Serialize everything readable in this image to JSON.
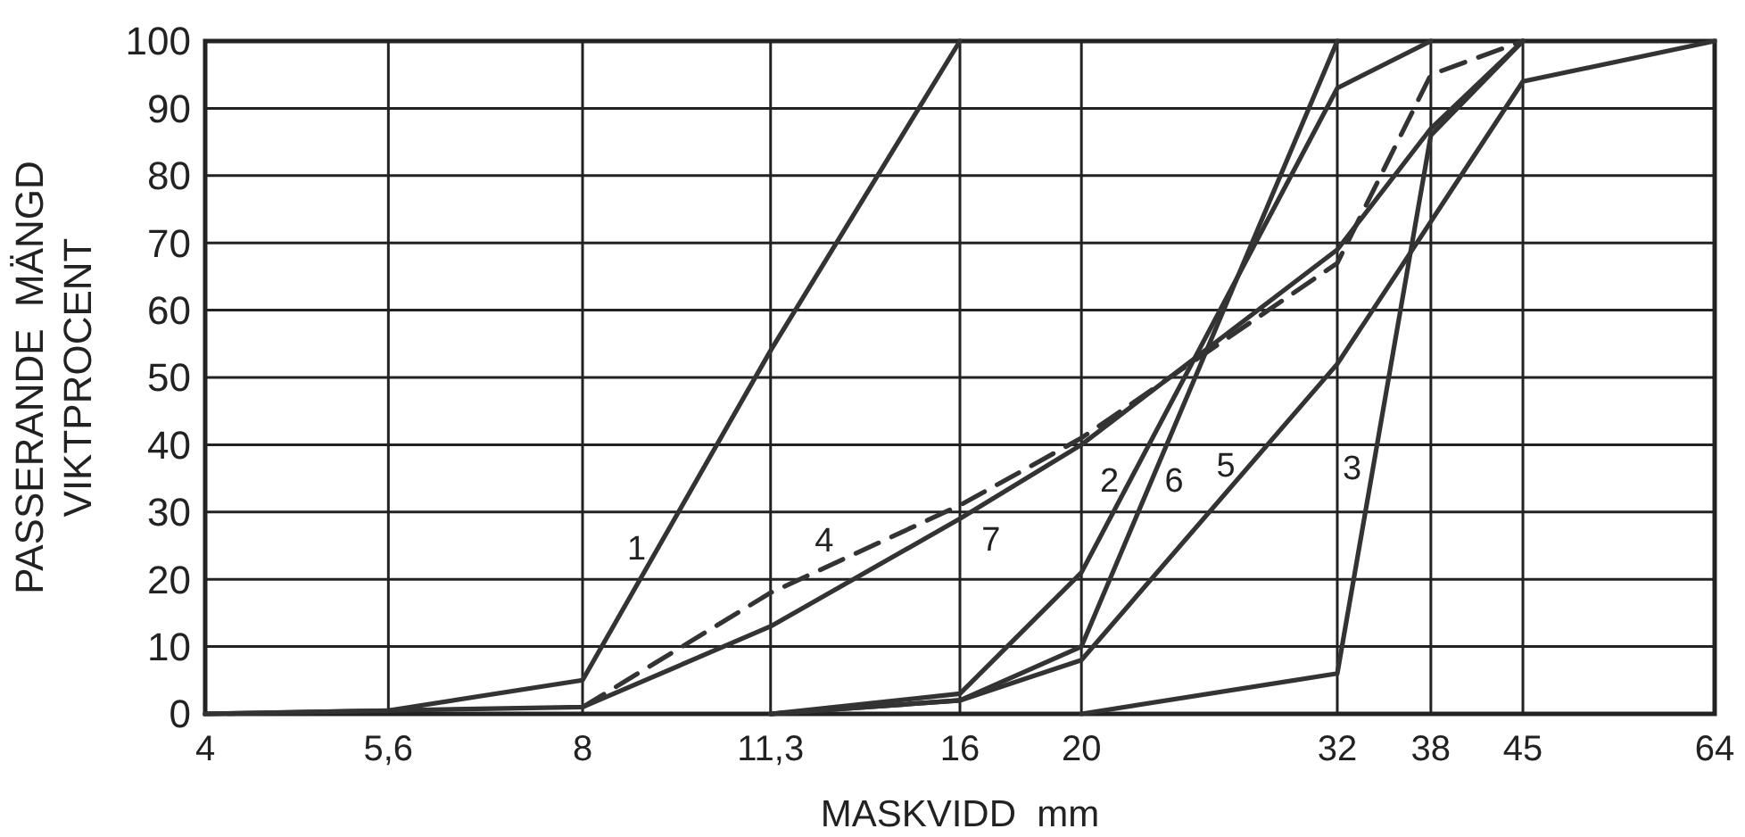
{
  "chart_data": {
    "type": "line",
    "xlabel": "MASKVIDD  mm",
    "ylabel": "PASSERANDE  MÄNGD\nVIKTPROCENT",
    "log": "x",
    "grid": true,
    "line_style": "solid",
    "xlim": [
      4,
      64
    ],
    "ylim": [
      0,
      100
    ],
    "xticks": [
      4,
      {
        "value": 5.6,
        "label": "5,6"
      },
      8,
      {
        "value": 11.3,
        "label": "11,3"
      },
      16,
      20,
      32,
      38,
      45,
      64
    ],
    "yticks": [
      0,
      10,
      20,
      30,
      40,
      50,
      60,
      70,
      80,
      90,
      100
    ],
    "series": [
      {
        "color": "#333333",
        "x": [
          4,
          5.6,
          8,
          11.3,
          16
        ],
        "values": [
          0,
          0.5,
          5,
          54,
          100
        ]
      },
      {
        "color": "#333333",
        "x": [
          11.3,
          16,
          20,
          32,
          38
        ],
        "values": [
          0,
          3,
          21,
          93,
          100
        ]
      },
      {
        "color": "#333333",
        "x": [
          20,
          32,
          38,
          45
        ],
        "values": [
          0,
          6,
          86,
          100
        ]
      },
      {
        "color": "#333333",
        "line_style": "dashed",
        "x": [
          8,
          11.3,
          16,
          20,
          32,
          38,
          45
        ],
        "values": [
          1,
          18,
          31,
          41,
          67,
          95,
          100
        ]
      },
      {
        "color": "#333333",
        "x": [
          11.3,
          16,
          20,
          32,
          45,
          64
        ],
        "values": [
          0,
          2,
          8,
          52,
          94,
          100
        ]
      },
      {
        "color": "#333333",
        "x": [
          11.3,
          16,
          20,
          32
        ],
        "values": [
          0,
          2,
          10,
          100
        ]
      },
      {
        "color": "#333333",
        "x": [
          4,
          5.6,
          8,
          11.3,
          16,
          20,
          32,
          38,
          45
        ],
        "values": [
          0,
          0.5,
          1,
          13,
          29,
          40,
          69,
          87,
          100
        ]
      }
    ],
    "annotations": [
      {
        "text": "1",
        "x": 9.19,
        "y": 24.7
      },
      {
        "text": "2",
        "x": 21.9,
        "y": 34.8
      },
      {
        "text": "3",
        "x": 34.2,
        "y": 36.7
      },
      {
        "text": "4",
        "x": 12.8,
        "y": 22.7
      },
      {
        "text": "5",
        "x": 27.3,
        "y": 37
      },
      {
        "text": "6",
        "x": 22.8,
        "y": 34.8
      },
      {
        "text": "7",
        "x": 16.5,
        "y": 30.5
      }
    ]
  }
}
